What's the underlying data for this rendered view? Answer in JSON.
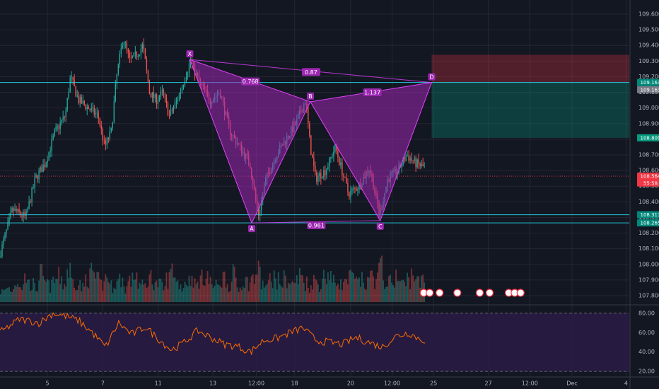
{
  "chart_data": {
    "type": "candlestick",
    "symbol": "",
    "price_axis": {
      "min": 107.8,
      "max": 109.6,
      "ticks": [
        "109.600",
        "109.500",
        "109.400",
        "109.300",
        "109.200",
        "109.100",
        "109.000",
        "108.900",
        "108.800",
        "108.700",
        "108.600",
        "108.500",
        "108.400",
        "108.300",
        "108.200",
        "108.100",
        "108.000",
        "107.900",
        "107.800"
      ]
    },
    "time_axis": {
      "ticks": [
        {
          "label": "5",
          "t": 0.072
        },
        {
          "label": "7",
          "t": 0.156
        },
        {
          "label": "11",
          "t": 0.24
        },
        {
          "label": "13",
          "t": 0.323
        },
        {
          "label": "12:00",
          "t": 0.389
        },
        {
          "label": "18",
          "t": 0.447
        },
        {
          "label": "20",
          "t": 0.532
        },
        {
          "label": "12:00",
          "t": 0.595
        },
        {
          "label": "25",
          "t": 0.658
        },
        {
          "label": "27",
          "t": 0.741
        },
        {
          "label": "12:00",
          "t": 0.804
        },
        {
          "label": "Dec",
          "t": 0.868
        },
        {
          "label": "4",
          "t": 0.95
        }
      ]
    },
    "price_path": [
      [
        0.0,
        108.05
      ],
      [
        0.02,
        108.35
      ],
      [
        0.04,
        108.3
      ],
      [
        0.055,
        108.55
      ],
      [
        0.07,
        108.65
      ],
      [
        0.085,
        108.85
      ],
      [
        0.1,
        108.95
      ],
      [
        0.108,
        109.2
      ],
      [
        0.12,
        109.05
      ],
      [
        0.135,
        109.0
      ],
      [
        0.15,
        108.95
      ],
      [
        0.16,
        108.75
      ],
      [
        0.17,
        108.85
      ],
      [
        0.178,
        109.2
      ],
      [
        0.188,
        109.45
      ],
      [
        0.198,
        109.3
      ],
      [
        0.21,
        109.35
      ],
      [
        0.218,
        109.4
      ],
      [
        0.228,
        109.1
      ],
      [
        0.238,
        109.05
      ],
      [
        0.248,
        109.1
      ],
      [
        0.258,
        108.95
      ],
      [
        0.27,
        109.05
      ],
      [
        0.282,
        109.2
      ],
      [
        0.29,
        109.3
      ],
      [
        0.305,
        109.15
      ],
      [
        0.32,
        109.05
      ],
      [
        0.335,
        109.1
      ],
      [
        0.35,
        108.85
      ],
      [
        0.365,
        108.75
      ],
      [
        0.38,
        108.65
      ],
      [
        0.393,
        108.31
      ],
      [
        0.405,
        108.55
      ],
      [
        0.42,
        108.7
      ],
      [
        0.435,
        108.8
      ],
      [
        0.45,
        108.9
      ],
      [
        0.465,
        109.05
      ],
      [
        0.472,
        108.75
      ],
      [
        0.48,
        108.55
      ],
      [
        0.495,
        108.6
      ],
      [
        0.51,
        108.75
      ],
      [
        0.52,
        108.6
      ],
      [
        0.53,
        108.45
      ],
      [
        0.545,
        108.5
      ],
      [
        0.562,
        108.62
      ],
      [
        0.577,
        108.32
      ],
      [
        0.59,
        108.55
      ],
      [
        0.605,
        108.6
      ],
      [
        0.618,
        108.7
      ],
      [
        0.63,
        108.65
      ],
      [
        0.645,
        108.62
      ]
    ],
    "volume_profile": [
      0.3,
      0.4,
      0.35,
      0.6,
      0.45,
      0.7,
      0.5,
      0.4,
      0.8,
      0.55,
      0.45,
      0.6,
      0.7,
      0.5,
      0.9,
      0.6,
      0.5,
      0.4,
      0.7,
      0.85,
      0.6,
      0.5,
      0.75,
      0.45,
      0.55,
      0.65,
      0.4,
      0.6,
      0.8,
      0.5,
      0.45,
      0.7,
      0.6,
      0.5,
      0.4,
      0.65,
      0.9,
      0.55,
      0.45,
      0.6,
      0.7,
      0.5,
      0.65,
      0.8,
      0.55,
      0.45,
      0.6,
      0.7,
      0.5,
      0.75,
      0.4,
      0.6,
      0.55,
      0.65,
      0.85,
      0.5,
      0.45,
      0.7,
      0.6,
      0.55,
      0.65,
      0.5,
      0.6,
      0.75,
      0.55,
      0.45,
      0.6,
      0.5,
      0.7,
      0.8,
      0.55,
      0.6,
      0.5,
      0.65,
      0.7,
      0.55,
      0.6,
      0.5,
      0.75,
      0.65,
      0.95,
      0.6,
      0.55,
      0.7,
      0.6,
      0.5,
      0.65,
      0.8,
      0.55,
      0.6
    ],
    "indicator": {
      "levels": [
        "80.00",
        "60.00",
        "40.00",
        "20.00"
      ],
      "range": [
        15,
        85
      ],
      "upper_band": 80,
      "lower_band": 20,
      "path": [
        [
          0.0,
          60
        ],
        [
          0.03,
          74
        ],
        [
          0.06,
          70
        ],
        [
          0.08,
          80
        ],
        [
          0.1,
          77
        ],
        [
          0.12,
          72
        ],
        [
          0.14,
          60
        ],
        [
          0.16,
          45
        ],
        [
          0.18,
          70
        ],
        [
          0.2,
          58
        ],
        [
          0.22,
          66
        ],
        [
          0.24,
          54
        ],
        [
          0.26,
          42
        ],
        [
          0.28,
          50
        ],
        [
          0.3,
          62
        ],
        [
          0.32,
          55
        ],
        [
          0.34,
          48
        ],
        [
          0.36,
          46
        ],
        [
          0.38,
          40
        ],
        [
          0.4,
          52
        ],
        [
          0.42,
          54
        ],
        [
          0.44,
          60
        ],
        [
          0.46,
          65
        ],
        [
          0.47,
          58
        ],
        [
          0.48,
          52
        ],
        [
          0.5,
          50
        ],
        [
          0.52,
          48
        ],
        [
          0.54,
          55
        ],
        [
          0.56,
          50
        ],
        [
          0.58,
          45
        ],
        [
          0.6,
          56
        ],
        [
          0.62,
          60
        ],
        [
          0.635,
          54
        ],
        [
          0.645,
          52
        ]
      ]
    },
    "harmonic_pattern": {
      "points": [
        {
          "label": "X",
          "t": 0.288,
          "price": 109.31
        },
        {
          "label": "A",
          "t": 0.382,
          "price": 108.265
        },
        {
          "label": "B",
          "t": 0.471,
          "price": 109.04
        },
        {
          "label": "C",
          "t": 0.577,
          "price": 108.28
        },
        {
          "label": "D",
          "t": 0.655,
          "price": 109.163
        }
      ],
      "ratios": [
        {
          "label": "0.768",
          "t": 0.38,
          "price": 109.17
        },
        {
          "label": "0.87",
          "t": 0.472,
          "price": 109.23
        },
        {
          "label": "1.137",
          "t": 0.565,
          "price": 109.1
        },
        {
          "label": "0.961",
          "t": 0.48,
          "price": 108.25
        }
      ]
    },
    "horizontal_lines": [
      {
        "price": 109.163,
        "color": "#26c6da"
      },
      {
        "price": 108.317,
        "color": "#26c6da"
      },
      {
        "price": 108.265,
        "color": "#26c6da"
      }
    ],
    "position_tool": {
      "entry": 109.163,
      "stop": 109.34,
      "target": 108.809,
      "t_start": 0.655
    },
    "price_tags": [
      {
        "label": "109.163",
        "price": 109.163,
        "bg": "#00897b"
      },
      {
        "label": "109.163",
        "price": 109.117,
        "bg": "#787b86"
      },
      {
        "label": "108.809",
        "price": 108.809,
        "bg": "#089981"
      },
      {
        "label": "108.564",
        "price": 108.564,
        "bg": "#f23645"
      },
      {
        "label": "55:58",
        "price": 108.52,
        "bg": "#f23645"
      },
      {
        "label": "108.317",
        "price": 108.317,
        "bg": "#00897b"
      },
      {
        "label": "108.265",
        "price": 108.265,
        "bg": "#00897b"
      }
    ],
    "current_price": 108.564,
    "event_markers": [
      {
        "t": 0.643,
        "label": "3"
      },
      {
        "t": 0.652,
        "label": "6"
      },
      {
        "t": 0.667,
        "label": "3"
      },
      {
        "t": 0.694,
        "label": "4"
      },
      {
        "t": 0.728,
        "label": "6"
      },
      {
        "t": 0.743,
        "label": "8"
      },
      {
        "t": 0.772,
        "label": "5"
      },
      {
        "t": 0.781,
        "label": "3"
      },
      {
        "t": 0.79,
        "label": "6"
      }
    ],
    "colors": {
      "background": "#131722",
      "grid": "#242733",
      "up": "#26a69a",
      "down": "#ef5350",
      "pattern_fill": "#9c27b0",
      "pattern_line": "#e040fb",
      "indicator_line": "#ff6d00",
      "indicator_bg": "#2a1b44",
      "text": "#b2b5be"
    }
  }
}
